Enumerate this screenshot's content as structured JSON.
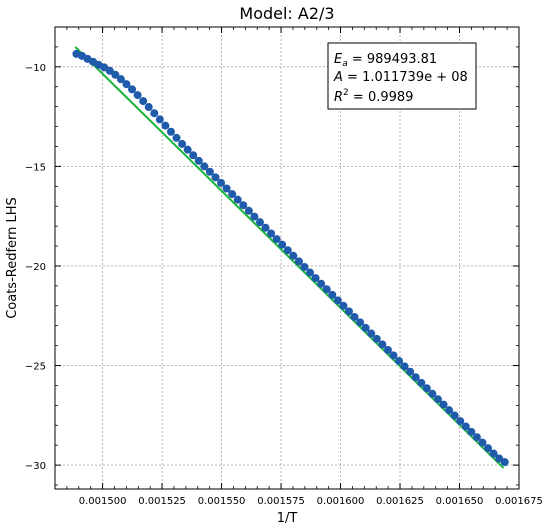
{
  "chart_data": {
    "type": "scatter",
    "title": "Model: A2/3",
    "xlabel": "1/T",
    "ylabel": "Coats-Redfern LHS",
    "xlim": [
      0.00148,
      0.001675
    ],
    "ylim": [
      -31.2,
      -8.0
    ],
    "grid": true,
    "x_ticks": [
      "0.001500",
      "0.001525",
      "0.001550",
      "0.001575",
      "0.001600",
      "0.001625",
      "0.001650",
      "0.001675"
    ],
    "y_ticks": [
      "−10",
      "−15",
      "−20",
      "−25",
      "−30"
    ],
    "x_tick_values": [
      0.0015,
      0.001525,
      0.00155,
      0.001575,
      0.0016,
      0.001625,
      0.00165,
      0.001675
    ],
    "y_tick_values": [
      -10,
      -15,
      -20,
      -25,
      -30
    ],
    "annotation": {
      "line1_label": "E",
      "line1_sub": "a",
      "line1_value": " = 989493.81",
      "line2_label": "A",
      "line2_value": " = 1.011739e + 08",
      "line3_label": "R",
      "line3_sup": "2",
      "line3_value": " = 0.9989"
    },
    "colors": {
      "points": "#1f5bab",
      "fit_line": "#19b43c",
      "grid": "#888888"
    },
    "series": [
      {
        "kind": "points",
        "x_start": 0.001489,
        "x_end": 0.001669,
        "count": 78,
        "y_values": [
          -9.35,
          -9.45,
          -9.6,
          -9.75,
          -9.9,
          -10.03,
          -10.2,
          -10.4,
          -10.62,
          -10.87,
          -11.13,
          -11.42,
          -11.72,
          -12.02,
          -12.33,
          -12.64,
          -12.95,
          -13.26,
          -13.57,
          -13.87,
          -14.16,
          -14.44,
          -14.72,
          -15.0,
          -15.27,
          -15.55,
          -15.83,
          -16.11,
          -16.39,
          -16.67,
          -16.95,
          -17.23,
          -17.52,
          -17.8,
          -18.08,
          -18.37,
          -18.65,
          -18.93,
          -19.21,
          -19.49,
          -19.77,
          -20.05,
          -20.33,
          -20.61,
          -20.89,
          -21.17,
          -21.45,
          -21.73,
          -22.0,
          -22.28,
          -22.56,
          -22.83,
          -23.11,
          -23.39,
          -23.66,
          -23.94,
          -24.22,
          -24.49,
          -24.77,
          -25.04,
          -25.31,
          -25.59,
          -25.87,
          -26.14,
          -26.42,
          -26.69,
          -26.96,
          -27.24,
          -27.51,
          -27.79,
          -28.06,
          -28.33,
          -28.6,
          -28.87,
          -29.15,
          -29.42,
          -29.67,
          -29.85
        ]
      },
      {
        "kind": "fit",
        "x": [
          0.0014885,
          0.0016685
        ],
        "y": [
          -9.0,
          -30.15
        ]
      }
    ]
  }
}
